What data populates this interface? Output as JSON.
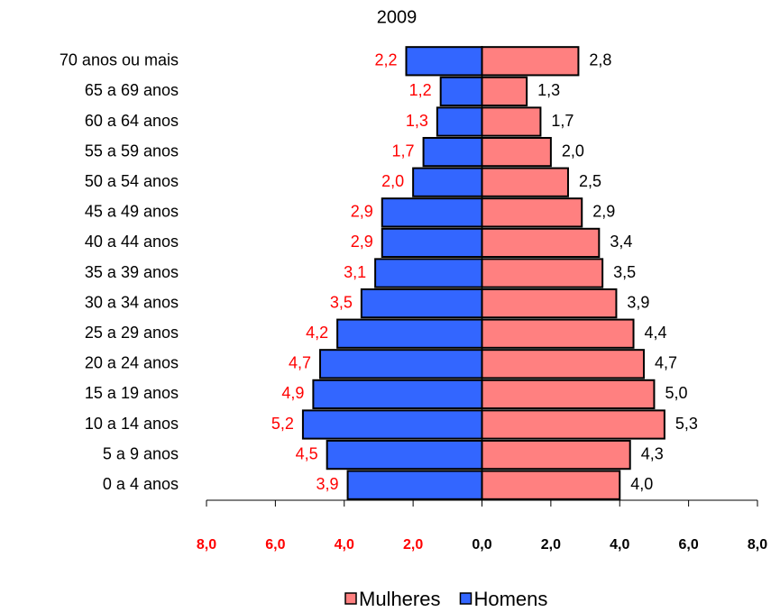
{
  "chart_data": {
    "type": "pyramid",
    "title": "2009",
    "categories": [
      "0 a 4 anos",
      "5 a 9 anos",
      "10 a 14 anos",
      "15 a 19 anos",
      "20 a 24 anos",
      "25 a 29 anos",
      "30 a 34 anos",
      "35 a 39 anos",
      "40 a 44 anos",
      "45 a 49 anos",
      "50 a 54 anos",
      "55 a 59 anos",
      "60 a 64 anos",
      "65 a 69 anos",
      "70 anos ou mais"
    ],
    "series": [
      {
        "name": "Mulheres",
        "color": "#ff8080",
        "label_color": "#000000",
        "values": [
          4.0,
          4.3,
          5.3,
          5.0,
          4.7,
          4.4,
          3.9,
          3.5,
          3.4,
          2.9,
          2.5,
          2.0,
          1.7,
          1.3,
          2.8
        ],
        "value_labels": [
          "4,0",
          "4,3",
          "5,3",
          "5,0",
          "4,7",
          "4,4",
          "3,9",
          "3,5",
          "3,4",
          "2,9",
          "2,5",
          "2,0",
          "1,7",
          "1,3",
          "2,8"
        ]
      },
      {
        "name": "Homens",
        "color": "#3366ff",
        "label_color": "#ff0000",
        "values": [
          -3.9,
          -4.5,
          -5.2,
          -4.9,
          -4.7,
          -4.2,
          -3.5,
          -3.1,
          -2.9,
          -2.9,
          -2.0,
          -1.7,
          -1.3,
          -1.2,
          -2.2
        ],
        "value_labels": [
          "3,9",
          "4,5",
          "5,2",
          "4,9",
          "4,7",
          "4,2",
          "3,5",
          "3,1",
          "2,9",
          "2,9",
          "2,0",
          "1,7",
          "1,3",
          "1,2",
          "2,2"
        ]
      }
    ],
    "xlim": [
      -8,
      8
    ],
    "xticks": [
      {
        "value": -8,
        "label": "8,0"
      },
      {
        "value": -6,
        "label": "6,0"
      },
      {
        "value": -4,
        "label": "4,0"
      },
      {
        "value": -2,
        "label": "2,0"
      },
      {
        "value": 0,
        "label": "0,0"
      },
      {
        "value": 2,
        "label": "2,0"
      },
      {
        "value": 4,
        "label": "4,0"
      },
      {
        "value": 6,
        "label": "6,0"
      },
      {
        "value": 8,
        "label": "8,0"
      }
    ],
    "negative_tick_color": "#ff0000",
    "legend": "bottom"
  }
}
